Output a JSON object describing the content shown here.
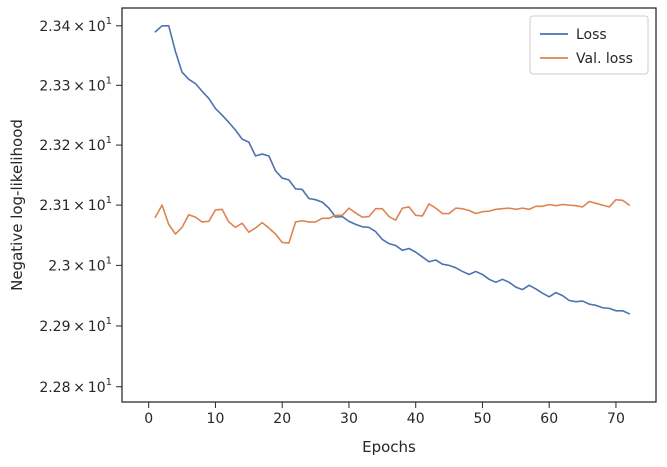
{
  "chart_data": {
    "type": "line",
    "title": "",
    "xlabel": "Epochs",
    "ylabel": "Negative log-likelihood",
    "x_scale": "linear",
    "y_scale": "log",
    "xlim": [
      -4,
      76
    ],
    "ylim": [
      22.775,
      23.43
    ],
    "x_ticks": [
      0,
      10,
      20,
      30,
      40,
      50,
      60,
      70
    ],
    "x_tick_labels": [
      "0",
      "10",
      "20",
      "30",
      "40",
      "50",
      "60",
      "70"
    ],
    "y_ticks": [
      22.8,
      22.9,
      23.0,
      23.1,
      23.2,
      23.3,
      23.4
    ],
    "y_tick_labels": [
      {
        "base": "2.28",
        "exp": "1"
      },
      {
        "base": "2.29",
        "exp": "1"
      },
      {
        "base": "2.3",
        "exp": "1"
      },
      {
        "base": "2.31",
        "exp": "1"
      },
      {
        "base": "2.32",
        "exp": "1"
      },
      {
        "base": "2.33",
        "exp": "1"
      },
      {
        "base": "2.34",
        "exp": "1"
      }
    ],
    "grid": false,
    "legend_position": "top-right",
    "x": [
      1,
      2,
      3,
      4,
      5,
      6,
      7,
      8,
      9,
      10,
      11,
      12,
      13,
      14,
      15,
      16,
      17,
      18,
      19,
      20,
      21,
      22,
      23,
      24,
      25,
      26,
      27,
      28,
      29,
      30,
      31,
      32,
      33,
      34,
      35,
      36,
      37,
      38,
      39,
      40,
      41,
      42,
      43,
      44,
      45,
      46,
      47,
      48,
      49,
      50,
      51,
      52,
      53,
      54,
      55,
      56,
      57,
      58,
      59,
      60,
      61,
      62,
      63,
      64,
      65,
      66,
      67,
      68,
      69,
      70,
      71,
      72
    ],
    "series": [
      {
        "name": "Loss",
        "color": "#4c72b0",
        "values": [
          23.39,
          23.4,
          23.4,
          23.357,
          23.322,
          23.31,
          23.303,
          23.29,
          23.278,
          23.261,
          23.25,
          23.238,
          23.225,
          23.21,
          23.205,
          23.182,
          23.185,
          23.182,
          23.157,
          23.145,
          23.142,
          23.127,
          23.126,
          23.111,
          23.109,
          23.105,
          23.095,
          23.08,
          23.081,
          23.073,
          23.068,
          23.064,
          23.063,
          23.056,
          23.043,
          23.036,
          23.033,
          23.025,
          23.028,
          23.022,
          23.014,
          23.006,
          23.009,
          23.002,
          23.0,
          22.996,
          22.99,
          22.985,
          22.99,
          22.985,
          22.977,
          22.972,
          22.977,
          22.972,
          22.964,
          22.96,
          22.967,
          22.961,
          22.954,
          22.948,
          22.955,
          22.95,
          22.942,
          22.94,
          22.941,
          22.936,
          22.934,
          22.93,
          22.929,
          22.925,
          22.925,
          22.92
        ]
      },
      {
        "name": "Val. loss",
        "color": "#dd8452",
        "values": [
          23.08,
          23.1,
          23.068,
          23.052,
          23.063,
          23.084,
          23.08,
          23.072,
          23.073,
          23.092,
          23.093,
          23.072,
          23.063,
          23.07,
          23.055,
          23.062,
          23.071,
          23.062,
          23.052,
          23.038,
          23.037,
          23.072,
          23.074,
          23.072,
          23.072,
          23.078,
          23.078,
          23.083,
          23.083,
          23.095,
          23.087,
          23.08,
          23.081,
          23.094,
          23.094,
          23.081,
          23.075,
          23.095,
          23.097,
          23.083,
          23.082,
          23.102,
          23.095,
          23.086,
          23.086,
          23.095,
          23.094,
          23.091,
          23.086,
          23.089,
          23.09,
          23.093,
          23.094,
          23.095,
          23.093,
          23.095,
          23.093,
          23.098,
          23.098,
          23.101,
          23.099,
          23.101,
          23.1,
          23.099,
          23.097,
          23.106,
          23.103,
          23.1,
          23.097,
          23.109,
          23.108,
          23.1
        ]
      }
    ]
  }
}
